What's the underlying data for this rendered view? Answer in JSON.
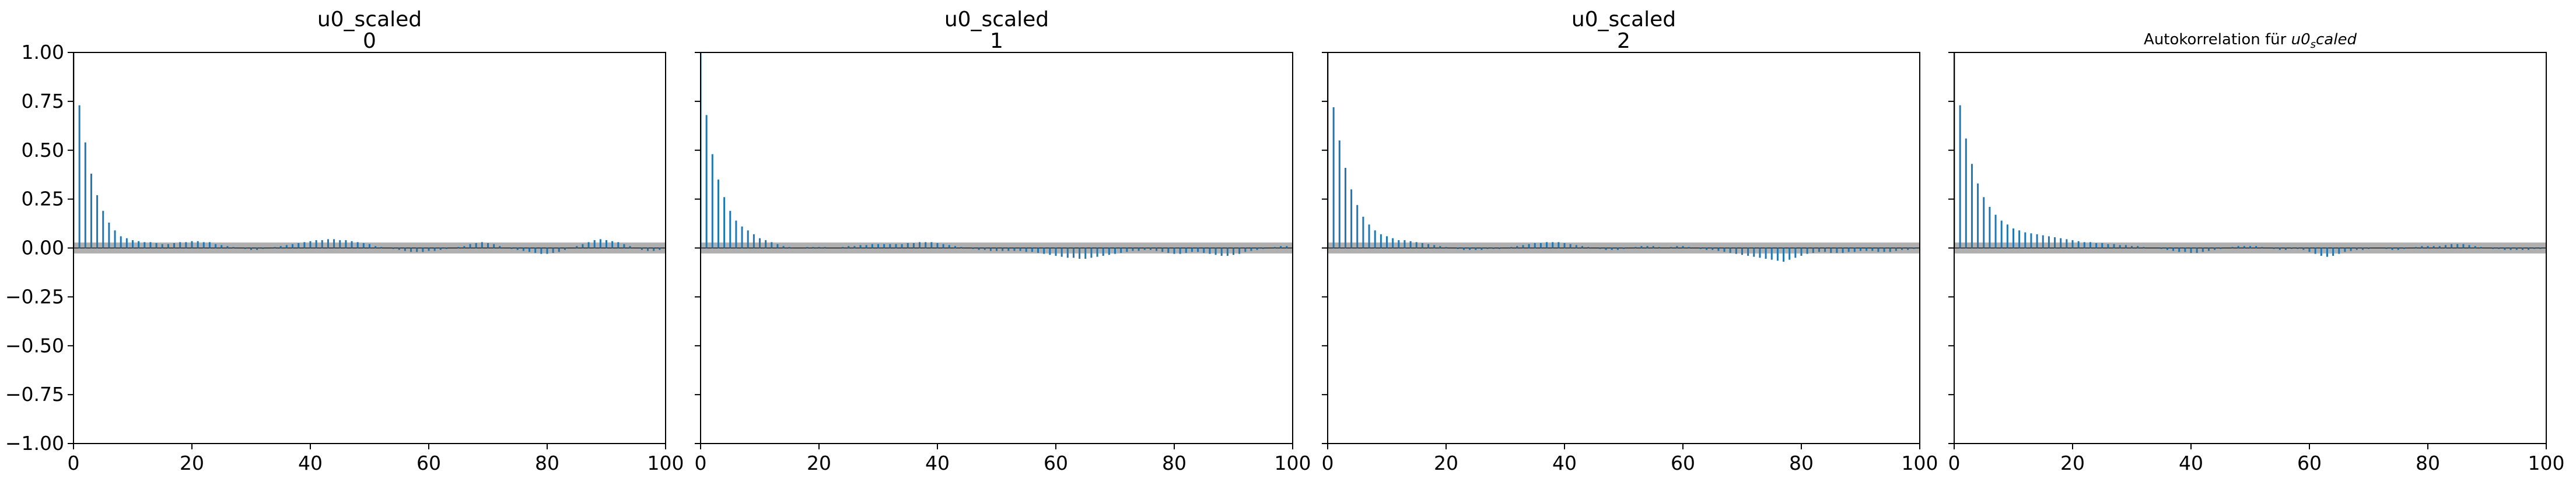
{
  "figure": {
    "background": "#ffffff",
    "stem_color": "#1f77b4",
    "band_color": "#b0b0b0"
  },
  "chart_data": [
    {
      "type": "bar",
      "title": "u0_scaled",
      "subtitle": "0",
      "xlim": [
        0,
        100
      ],
      "ylim": [
        -1,
        1
      ],
      "xticks": [
        "0",
        "20",
        "40",
        "60",
        "80",
        "100"
      ],
      "yticks": [
        "1.00",
        "0.75",
        "0.50",
        "0.25",
        "0.00",
        "−0.25",
        "−0.50",
        "−0.75",
        "−1.00"
      ],
      "confidence_band": 0.028,
      "x": [
        0,
        1,
        2,
        3,
        4,
        5,
        6,
        7,
        8,
        9,
        10,
        11,
        12,
        13,
        14,
        15,
        16,
        17,
        18,
        19,
        20,
        21,
        22,
        23,
        24,
        25,
        26,
        27,
        28,
        29,
        30,
        31,
        32,
        33,
        34,
        35,
        36,
        37,
        38,
        39,
        40,
        41,
        42,
        43,
        44,
        45,
        46,
        47,
        48,
        49,
        50,
        51,
        52,
        53,
        54,
        55,
        56,
        57,
        58,
        59,
        60,
        61,
        62,
        63,
        64,
        65,
        66,
        67,
        68,
        69,
        70,
        71,
        72,
        73,
        74,
        75,
        76,
        77,
        78,
        79,
        80,
        81,
        82,
        83,
        84,
        85,
        86,
        87,
        88,
        89,
        90,
        91,
        92,
        93,
        94,
        95,
        96,
        97,
        98,
        99
      ],
      "values": [
        1.0,
        0.73,
        0.54,
        0.38,
        0.27,
        0.19,
        0.13,
        0.09,
        0.06,
        0.05,
        0.04,
        0.035,
        0.03,
        0.03,
        0.025,
        0.02,
        0.02,
        0.025,
        0.03,
        0.03,
        0.035,
        0.035,
        0.03,
        0.03,
        0.02,
        0.015,
        0.01,
        0.005,
        0.0,
        -0.005,
        -0.01,
        -0.01,
        -0.005,
        0.0,
        0.005,
        0.01,
        0.015,
        0.02,
        0.025,
        0.03,
        0.035,
        0.04,
        0.04,
        0.045,
        0.045,
        0.04,
        0.04,
        0.035,
        0.03,
        0.025,
        0.02,
        0.01,
        0.005,
        0.0,
        -0.005,
        -0.01,
        -0.015,
        -0.02,
        -0.02,
        -0.02,
        -0.015,
        -0.015,
        -0.01,
        -0.005,
        0.0,
        0.005,
        0.01,
        0.02,
        0.025,
        0.03,
        0.025,
        0.02,
        0.01,
        0.0,
        -0.005,
        -0.01,
        -0.015,
        -0.02,
        -0.025,
        -0.03,
        -0.03,
        -0.025,
        -0.02,
        -0.01,
        0.0,
        0.01,
        0.02,
        0.03,
        0.04,
        0.045,
        0.04,
        0.035,
        0.03,
        0.02,
        0.01,
        0.0,
        -0.01,
        -0.015,
        -0.015,
        -0.01
      ]
    },
    {
      "type": "bar",
      "title": "u0_scaled",
      "subtitle": "1",
      "xlim": [
        0,
        100
      ],
      "ylim": [
        -1,
        1
      ],
      "xticks": [
        "0",
        "20",
        "40",
        "60",
        "80",
        "100"
      ],
      "yticks": [],
      "confidence_band": 0.028,
      "x": [
        0,
        1,
        2,
        3,
        4,
        5,
        6,
        7,
        8,
        9,
        10,
        11,
        12,
        13,
        14,
        15,
        16,
        17,
        18,
        19,
        20,
        21,
        22,
        23,
        24,
        25,
        26,
        27,
        28,
        29,
        30,
        31,
        32,
        33,
        34,
        35,
        36,
        37,
        38,
        39,
        40,
        41,
        42,
        43,
        44,
        45,
        46,
        47,
        48,
        49,
        50,
        51,
        52,
        53,
        54,
        55,
        56,
        57,
        58,
        59,
        60,
        61,
        62,
        63,
        64,
        65,
        66,
        67,
        68,
        69,
        70,
        71,
        72,
        73,
        74,
        75,
        76,
        77,
        78,
        79,
        80,
        81,
        82,
        83,
        84,
        85,
        86,
        87,
        88,
        89,
        90,
        91,
        92,
        93,
        94,
        95,
        96,
        97,
        98,
        99
      ],
      "values": [
        1.0,
        0.68,
        0.48,
        0.35,
        0.26,
        0.19,
        0.14,
        0.11,
        0.09,
        0.07,
        0.05,
        0.04,
        0.03,
        0.02,
        0.01,
        0.005,
        0.0,
        0.0,
        0.005,
        0.005,
        0.005,
        0.005,
        0.0,
        0.0,
        0.005,
        0.01,
        0.01,
        0.015,
        0.015,
        0.02,
        0.02,
        0.02,
        0.02,
        0.02,
        0.02,
        0.025,
        0.025,
        0.03,
        0.03,
        0.03,
        0.025,
        0.02,
        0.015,
        0.01,
        0.005,
        0.0,
        -0.005,
        -0.01,
        -0.01,
        -0.015,
        -0.015,
        -0.015,
        -0.015,
        -0.015,
        -0.015,
        -0.02,
        -0.02,
        -0.025,
        -0.03,
        -0.035,
        -0.04,
        -0.045,
        -0.05,
        -0.05,
        -0.055,
        -0.055,
        -0.05,
        -0.045,
        -0.04,
        -0.035,
        -0.03,
        -0.025,
        -0.02,
        -0.015,
        -0.015,
        -0.01,
        -0.01,
        -0.015,
        -0.02,
        -0.025,
        -0.03,
        -0.03,
        -0.025,
        -0.02,
        -0.02,
        -0.025,
        -0.03,
        -0.035,
        -0.04,
        -0.04,
        -0.035,
        -0.03,
        -0.02,
        -0.015,
        -0.01,
        -0.005,
        0.0,
        0.005,
        0.01,
        0.01
      ]
    },
    {
      "type": "bar",
      "title": "u0_scaled",
      "subtitle": "2",
      "xlim": [
        0,
        100
      ],
      "ylim": [
        -1,
        1
      ],
      "xticks": [
        "0",
        "20",
        "40",
        "60",
        "80",
        "100"
      ],
      "yticks": [],
      "confidence_band": 0.028,
      "x": [
        0,
        1,
        2,
        3,
        4,
        5,
        6,
        7,
        8,
        9,
        10,
        11,
        12,
        13,
        14,
        15,
        16,
        17,
        18,
        19,
        20,
        21,
        22,
        23,
        24,
        25,
        26,
        27,
        28,
        29,
        30,
        31,
        32,
        33,
        34,
        35,
        36,
        37,
        38,
        39,
        40,
        41,
        42,
        43,
        44,
        45,
        46,
        47,
        48,
        49,
        50,
        51,
        52,
        53,
        54,
        55,
        56,
        57,
        58,
        59,
        60,
        61,
        62,
        63,
        64,
        65,
        66,
        67,
        68,
        69,
        70,
        71,
        72,
        73,
        74,
        75,
        76,
        77,
        78,
        79,
        80,
        81,
        82,
        83,
        84,
        85,
        86,
        87,
        88,
        89,
        90,
        91,
        92,
        93,
        94,
        95,
        96,
        97,
        98,
        99
      ],
      "values": [
        1.0,
        0.72,
        0.55,
        0.41,
        0.3,
        0.22,
        0.16,
        0.12,
        0.09,
        0.07,
        0.06,
        0.05,
        0.04,
        0.04,
        0.035,
        0.03,
        0.025,
        0.02,
        0.015,
        0.01,
        0.005,
        0.0,
        -0.005,
        -0.01,
        -0.01,
        -0.01,
        -0.01,
        -0.005,
        -0.005,
        -0.005,
        0.0,
        0.005,
        0.01,
        0.015,
        0.02,
        0.025,
        0.025,
        0.03,
        0.03,
        0.03,
        0.025,
        0.02,
        0.015,
        0.01,
        0.005,
        0.0,
        -0.005,
        -0.01,
        -0.01,
        -0.01,
        -0.005,
        0.0,
        0.005,
        0.01,
        0.01,
        0.01,
        0.005,
        0.0,
        0.005,
        0.01,
        0.01,
        0.005,
        0.0,
        -0.005,
        -0.01,
        -0.01,
        -0.015,
        -0.02,
        -0.025,
        -0.03,
        -0.035,
        -0.04,
        -0.045,
        -0.05,
        -0.055,
        -0.06,
        -0.065,
        -0.07,
        -0.06,
        -0.05,
        -0.04,
        -0.03,
        -0.025,
        -0.02,
        -0.02,
        -0.025,
        -0.025,
        -0.025,
        -0.02,
        -0.02,
        -0.015,
        -0.015,
        -0.015,
        -0.02,
        -0.02,
        -0.02,
        -0.015,
        -0.01,
        -0.01,
        -0.005
      ]
    },
    {
      "type": "bar",
      "title": "Autokorrelation für ",
      "title_math": "u0",
      "title_math_sub": "s",
      "title_math_rest": "caled",
      "xlim": [
        0,
        100
      ],
      "ylim": [
        -1,
        1
      ],
      "xticks": [
        "0",
        "20",
        "40",
        "60",
        "80",
        "100"
      ],
      "yticks": [],
      "confidence_band": 0.028,
      "x": [
        0,
        1,
        2,
        3,
        4,
        5,
        6,
        7,
        8,
        9,
        10,
        11,
        12,
        13,
        14,
        15,
        16,
        17,
        18,
        19,
        20,
        21,
        22,
        23,
        24,
        25,
        26,
        27,
        28,
        29,
        30,
        31,
        32,
        33,
        34,
        35,
        36,
        37,
        38,
        39,
        40,
        41,
        42,
        43,
        44,
        45,
        46,
        47,
        48,
        49,
        50,
        51,
        52,
        53,
        54,
        55,
        56,
        57,
        58,
        59,
        60,
        61,
        62,
        63,
        64,
        65,
        66,
        67,
        68,
        69,
        70,
        71,
        72,
        73,
        74,
        75,
        76,
        77,
        78,
        79,
        80,
        81,
        82,
        83,
        84,
        85,
        86,
        87,
        88,
        89,
        90,
        91,
        92,
        93,
        94,
        95,
        96,
        97,
        98,
        99
      ],
      "values": [
        1.0,
        0.73,
        0.56,
        0.43,
        0.33,
        0.26,
        0.21,
        0.17,
        0.14,
        0.12,
        0.1,
        0.09,
        0.08,
        0.075,
        0.07,
        0.065,
        0.06,
        0.055,
        0.05,
        0.045,
        0.04,
        0.035,
        0.03,
        0.03,
        0.025,
        0.025,
        0.02,
        0.02,
        0.015,
        0.015,
        0.01,
        0.01,
        0.005,
        0.0,
        0.0,
        -0.005,
        -0.01,
        -0.015,
        -0.02,
        -0.02,
        -0.025,
        -0.025,
        -0.02,
        -0.015,
        -0.01,
        -0.005,
        0.0,
        0.005,
        0.01,
        0.01,
        0.01,
        0.01,
        0.005,
        0.0,
        -0.005,
        -0.01,
        -0.01,
        -0.005,
        -0.005,
        -0.01,
        -0.02,
        -0.03,
        -0.04,
        -0.045,
        -0.04,
        -0.03,
        -0.02,
        -0.015,
        -0.01,
        -0.01,
        -0.005,
        0.0,
        0.0,
        -0.005,
        -0.01,
        -0.01,
        -0.005,
        0.0,
        0.005,
        0.01,
        0.01,
        0.01,
        0.01,
        0.015,
        0.02,
        0.02,
        0.02,
        0.015,
        0.01,
        0.005,
        0.0,
        -0.005,
        -0.005,
        -0.01,
        -0.01,
        -0.01,
        -0.01,
        -0.01,
        -0.005,
        -0.005
      ]
    }
  ]
}
